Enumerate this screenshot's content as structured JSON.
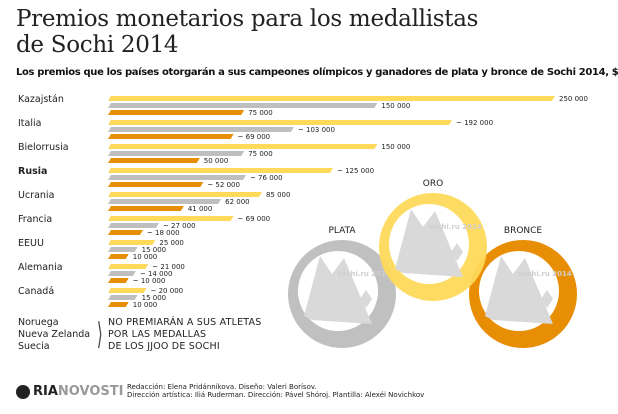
{
  "title_line1": "Premios monetarios para los medallistas",
  "title_line2": "de Sochi 2014",
  "subtitle": "Los premios que los países otorgarán a sus campeones olímpicos y ganadores de plata y bronce de Sochi 2014, $",
  "chart_data": {
    "type": "bar",
    "orientation": "horizontal",
    "unit": "$",
    "xlim": [
      0,
      250000
    ],
    "categories": [
      "Kazajstán",
      "Italia",
      "Bielorrusia",
      "Rusia",
      "Ucrania",
      "Francia",
      "EEUU",
      "Alemania",
      "Canadá"
    ],
    "highlighted_category": "Rusia",
    "series": [
      {
        "key": "gold",
        "color": "#fed95a",
        "values": [
          250000,
          192000,
          150000,
          125000,
          85000,
          69000,
          25000,
          21000,
          20000
        ],
        "labels": [
          "250 000",
          "~ 192 000",
          "150 000",
          "~ 125 000",
          "85 000",
          "~ 69 000",
          "25 000",
          "~ 21 000",
          "~ 20 000"
        ]
      },
      {
        "key": "silver",
        "color": "#bfbfbf",
        "values": [
          150000,
          103000,
          75000,
          76000,
          62000,
          27000,
          15000,
          14000,
          15000
        ],
        "labels": [
          "150 000",
          "~ 103 000",
          "75 000",
          "~ 76 000",
          "62 000",
          "~ 27 000",
          "15 000",
          "~ 14 000",
          "15 000"
        ]
      },
      {
        "key": "bronze",
        "color": "#e88e05",
        "values": [
          75000,
          69000,
          50000,
          52000,
          41000,
          18000,
          10000,
          10000,
          10000
        ],
        "labels": [
          "75 000",
          "~ 69 000",
          "50 000",
          "~ 52 000",
          "41 000",
          "~ 18 000",
          "10 000",
          "~ 10 000",
          "10 000"
        ]
      }
    ]
  },
  "no_prize": {
    "countries": [
      "Noruega",
      "Nueva Zelanda",
      "Suecia"
    ],
    "message": [
      "NO PREMIARÁN A SUS ATLETAS",
      "POR LAS MEDALLAS",
      "DE LOS JJOO DE SOCHI"
    ]
  },
  "medals": [
    {
      "label": "PLATA",
      "color": "#c0c0c0"
    },
    {
      "label": "ORO",
      "color": "#fed95a"
    },
    {
      "label": "BRONCE",
      "color": "#e88e05"
    }
  ],
  "medal_logo_text": "sochi.ru 2014",
  "logo": {
    "ria": "RIA",
    "novosti": "NOVOSTI"
  },
  "credits": [
    "Redacción: Elena Pridánnikova. Diseño: Valeri Borísov.",
    "Dirección artística: Iliá Ruderman. Dirección: Pável Shóroj. Plantilla: Alexéi Novichkov"
  ]
}
